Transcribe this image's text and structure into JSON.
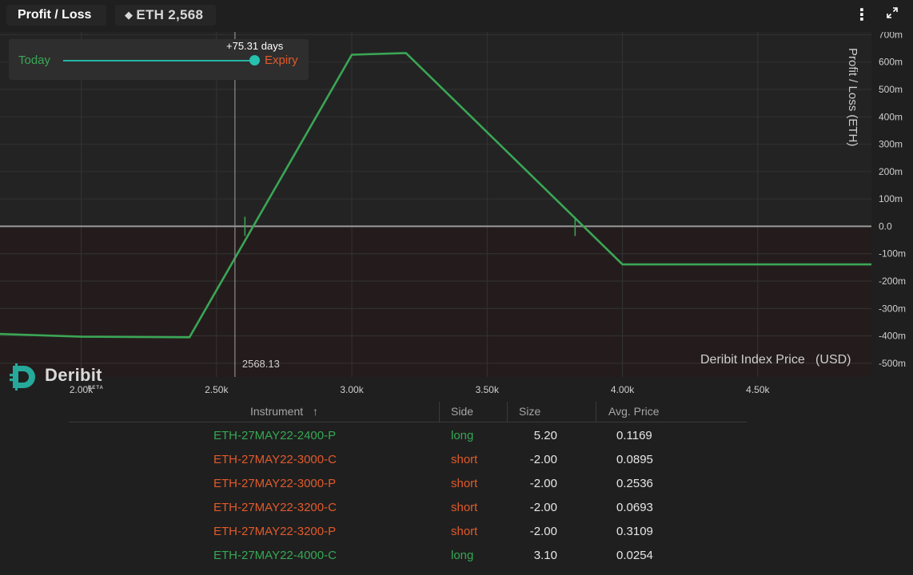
{
  "header": {
    "title": "Profit / Loss",
    "eth_glyph": "◆",
    "eth_price": "ETH 2,568",
    "menu_icon": "⋮",
    "expand_icon": "⤢"
  },
  "slider": {
    "today_label": "Today",
    "expiry_label": "Expiry",
    "days_label": "+75.31 days",
    "position_fraction": 1.0
  },
  "chart_data": {
    "type": "line",
    "xlabel": "Deribit Index Price   (USD)",
    "ylabel": "Profit / Loss   (ETH)",
    "xlim": [
      1700,
      4920
    ],
    "ylim": [
      -550,
      710
    ],
    "x_ticks": [
      2000,
      2500,
      3000,
      3500,
      4000,
      4500
    ],
    "x_tick_labels": [
      "2.00k",
      "2.50k",
      "3.00k",
      "3.50k",
      "4.00k",
      "4.50k"
    ],
    "y_ticks": [
      700,
      600,
      500,
      400,
      300,
      200,
      100,
      0,
      -100,
      -200,
      -300,
      -400,
      -500
    ],
    "y_tick_labels": [
      "700m",
      "600m",
      "500m",
      "400m",
      "300m",
      "200m",
      "100m",
      "0.0",
      "-100m",
      "-200m",
      "-300m",
      "-400m",
      "-500m"
    ],
    "current_price": 2568.13,
    "current_price_label": "2568.13",
    "breakevens": [
      2605,
      3825
    ],
    "series": [
      {
        "x": [
          1700,
          2000,
          2400,
          3000,
          3200,
          4000,
          4920
        ],
        "y": [
          -393,
          -403,
          -405,
          627,
          633,
          -139,
          -139
        ]
      }
    ],
    "colors": {
      "line": "#3aa655",
      "loss_area": "#241c1c",
      "zero_line": "#9a9a9a",
      "cursor": "#8d8d8d"
    }
  },
  "logo": {
    "name": "Deribit",
    "badge": "BETA"
  },
  "table": {
    "columns": [
      "Instrument",
      "Side",
      "Size",
      "Avg. Price"
    ],
    "sort_indicator": "↑",
    "rows": [
      {
        "instrument": "ETH-27MAY22-2400-P",
        "side": "long",
        "size": "5.20",
        "avg_price": "0.1169",
        "color": "green"
      },
      {
        "instrument": "ETH-27MAY22-3000-C",
        "side": "short",
        "size": "-2.00",
        "avg_price": "0.0895",
        "color": "orange"
      },
      {
        "instrument": "ETH-27MAY22-3000-P",
        "side": "short",
        "size": "-2.00",
        "avg_price": "0.2536",
        "color": "orange"
      },
      {
        "instrument": "ETH-27MAY22-3200-C",
        "side": "short",
        "size": "-2.00",
        "avg_price": "0.0693",
        "color": "orange"
      },
      {
        "instrument": "ETH-27MAY22-3200-P",
        "side": "short",
        "size": "-2.00",
        "avg_price": "0.3109",
        "color": "orange"
      },
      {
        "instrument": "ETH-27MAY22-4000-C",
        "side": "long",
        "size": "3.10",
        "avg_price": "0.0254",
        "color": "green"
      }
    ]
  }
}
